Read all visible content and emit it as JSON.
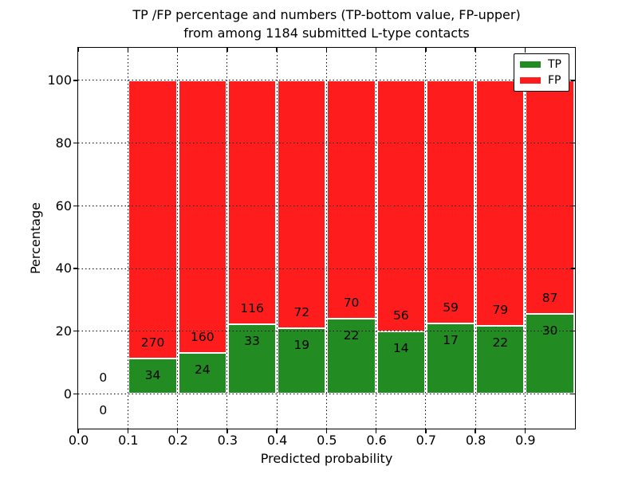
{
  "chart_data": {
    "type": "bar",
    "stacked": true,
    "normalized_to_percent": true,
    "title_line1": "TP /FP percentage and numbers (TP-bottom value, FP-upper)",
    "title_line2": "from among 1184 submitted L-type contacts",
    "xlabel": "Predicted probability",
    "ylabel": "Percentage",
    "total_submitted_contacts": 1184,
    "bin_starts": [
      0.0,
      0.1,
      0.2,
      0.3,
      0.4,
      0.5,
      0.6,
      0.7,
      0.8,
      0.9
    ],
    "bin_width": 0.1,
    "series": [
      {
        "name": "TP",
        "color": "#228B22",
        "values": [
          0,
          34,
          24,
          33,
          19,
          22,
          14,
          17,
          22,
          30
        ]
      },
      {
        "name": "FP",
        "color": "#FF1C1C",
        "values": [
          0,
          270,
          160,
          116,
          72,
          70,
          56,
          59,
          79,
          87
        ]
      }
    ],
    "x_tick_labels": [
      "0.0",
      "0.1",
      "0.2",
      "0.3",
      "0.4",
      "0.5",
      "0.6",
      "0.7",
      "0.8",
      "0.9"
    ],
    "y_ticks": [
      0,
      20,
      40,
      60,
      80,
      100
    ],
    "xlim": [
      0.0,
      1.0
    ],
    "ylim": [
      -11,
      110.5
    ],
    "grid": true,
    "grid_style": "dotted",
    "legend_position": "upper right",
    "legend": [
      {
        "label": "TP",
        "color": "#228B22"
      },
      {
        "label": "FP",
        "color": "#FF1C1C"
      }
    ]
  }
}
